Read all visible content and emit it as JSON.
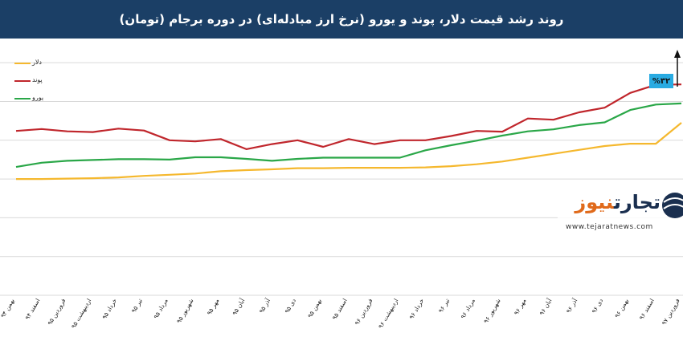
{
  "header": {
    "title": "روند رشد قیمت دلار، پوند و یورو (نرخ ارز مبادله‌ای) در دوره برجام (تومان)"
  },
  "watermark": {
    "logo_text_main": "تجارت",
    "logo_text_accent": "نیوز",
    "url": "www.tejaratnews.com"
  },
  "chart_data": {
    "type": "line",
    "title": "روند رشد قیمت دلار، پوند و یورو (نرخ ارز مبادله‌ای) در دوره برجام (تومان)",
    "categories": [
      "بهمن ۹۴",
      "اسفند ۹۴",
      "فروردین ۹۵",
      "اردیبهشت ۹۵",
      "خرداد ۹۵",
      "تیر ۹۵",
      "مرداد ۹۵",
      "شهریور ۹۵",
      "مهر ۹۵",
      "آبان ۹۵",
      "آذر ۹۵",
      "دی ۹۵",
      "بهمن ۹۵",
      "اسفند ۹۵",
      "فروردین ۹۶",
      "اردیبهشت ۹۶",
      "خرداد ۹۶",
      "تیر ۹۶",
      "مرداد ۹۶",
      "شهریور ۹۶",
      "مهر ۹۶",
      "آبان ۹۶",
      "آذر ۹۶",
      "دی ۹۶",
      "بهمن ۹۶",
      "اسفند ۹۶",
      "فروردین ۹۷"
    ],
    "ylim": [
      0,
      6500
    ],
    "grid": true,
    "legend_position": "top-left",
    "series": [
      {
        "name": "دلار",
        "color": "#f5b82e",
        "values": [
          3000,
          3000,
          3010,
          3020,
          3040,
          3080,
          3110,
          3140,
          3200,
          3230,
          3250,
          3280,
          3280,
          3290,
          3290,
          3290,
          3300,
          3330,
          3380,
          3450,
          3550,
          3650,
          3750,
          3850,
          3910,
          3910,
          4450
        ]
      },
      {
        "name": "پوند",
        "color": "#c0262c",
        "values": [
          4240,
          4290,
          4230,
          4210,
          4300,
          4250,
          4000,
          3970,
          4030,
          3770,
          3900,
          4000,
          3830,
          4030,
          3900,
          4000,
          4000,
          4110,
          4240,
          4220,
          4560,
          4530,
          4720,
          4840,
          5220,
          5430,
          5440
        ]
      },
      {
        "name": "یورو",
        "color": "#2aa748",
        "values": [
          3310,
          3420,
          3470,
          3490,
          3510,
          3510,
          3500,
          3560,
          3560,
          3520,
          3470,
          3520,
          3550,
          3550,
          3550,
          3550,
          3740,
          3870,
          3990,
          4120,
          4230,
          4280,
          4390,
          4460,
          4780,
          4920,
          4950
        ]
      }
    ],
    "annotations": [
      "%۳۲"
    ]
  }
}
